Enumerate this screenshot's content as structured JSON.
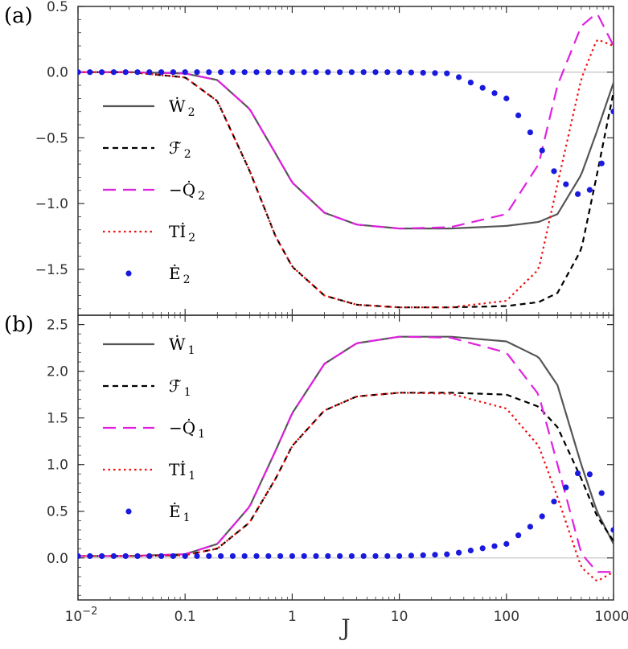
{
  "figure": {
    "xlabel": "J"
  },
  "x_ticks": {
    "labels": [
      "10−2",
      "0.1",
      "1",
      "10",
      "100",
      "1000"
    ],
    "values": [
      0.01,
      0.1,
      1,
      10,
      100,
      1000
    ]
  },
  "chart_data": [
    {
      "type": "line",
      "panel": "(a)",
      "xlabel": "J",
      "ylabel": "",
      "xscale": "log",
      "xlim": [
        0.01,
        1000
      ],
      "ylim": [
        -1.85,
        0.5
      ],
      "yticks": [
        0.5,
        0.0,
        -0.5,
        -1.0,
        -1.5
      ],
      "ytick_labels": [
        "0.5",
        "0.0",
        "−0.5",
        "−1.0",
        "−1.5"
      ],
      "legend_position": "left",
      "x": [
        0.01,
        0.03,
        0.1,
        0.2,
        0.4,
        0.7,
        1,
        2,
        4,
        10,
        30,
        100,
        200,
        300,
        500,
        700,
        1000
      ],
      "series": [
        {
          "name": "Ẇ₂",
          "label_main": "Ẇ",
          "label_sub": "2",
          "color": "#555555",
          "style": "solid",
          "values": [
            0,
            0,
            -0.01,
            -0.06,
            -0.28,
            -0.62,
            -0.84,
            -1.07,
            -1.16,
            -1.19,
            -1.19,
            -1.17,
            -1.14,
            -1.08,
            -0.78,
            -0.45,
            -0.08
          ]
        },
        {
          "name": "Ḟ₂",
          "label_main": "ℱ̇",
          "label_sub": "2",
          "color": "#000000",
          "style": "dash",
          "values": [
            0,
            0,
            -0.04,
            -0.22,
            -0.75,
            -1.25,
            -1.48,
            -1.7,
            -1.77,
            -1.79,
            -1.79,
            -1.78,
            -1.75,
            -1.68,
            -1.35,
            -0.78,
            -0.15
          ]
        },
        {
          "name": "−Q̇₂",
          "label_main": "−Q̇",
          "label_sub": "2",
          "color": "#e020e0",
          "style": "longdash",
          "values": [
            0,
            0,
            -0.01,
            -0.06,
            -0.28,
            -0.62,
            -0.84,
            -1.07,
            -1.16,
            -1.19,
            -1.18,
            -1.08,
            -0.7,
            -0.1,
            0.35,
            0.45,
            0.2
          ]
        },
        {
          "name": "Tİ₂",
          "label_main": "Tİ",
          "label_sub": "2",
          "color": "#ee1111",
          "style": "dot",
          "values": [
            0,
            0,
            -0.04,
            -0.22,
            -0.75,
            -1.25,
            -1.48,
            -1.7,
            -1.77,
            -1.79,
            -1.79,
            -1.74,
            -1.5,
            -0.85,
            -0.05,
            0.25,
            0.2
          ]
        },
        {
          "name": "Ė₂",
          "label_main": "Ė",
          "label_sub": "2",
          "color": "#1a1adf",
          "style": "points",
          "values": [
            0,
            0,
            0,
            0,
            0,
            0,
            0,
            0,
            0,
            0,
            -0.01,
            -0.2,
            -0.55,
            -0.8,
            -0.95,
            -0.85,
            -0.3
          ]
        }
      ]
    },
    {
      "type": "line",
      "panel": "(b)",
      "xlabel": "J",
      "ylabel": "",
      "xscale": "log",
      "xlim": [
        0.01,
        1000
      ],
      "ylim": [
        -0.45,
        2.6
      ],
      "yticks": [
        2.5,
        2.0,
        1.5,
        1.0,
        0.5,
        0.0
      ],
      "ytick_labels": [
        "2.5",
        "2.0",
        "1.5",
        "1.0",
        "0.5",
        "0.0"
      ],
      "legend_position": "left",
      "x": [
        0.01,
        0.03,
        0.1,
        0.2,
        0.4,
        0.7,
        1,
        2,
        4,
        10,
        30,
        100,
        200,
        300,
        500,
        700,
        1000
      ],
      "series": [
        {
          "name": "Ẇ₁",
          "label_main": "Ẇ",
          "label_sub": "1",
          "color": "#555555",
          "style": "solid",
          "values": [
            0.02,
            0.02,
            0.04,
            0.15,
            0.55,
            1.15,
            1.55,
            2.08,
            2.3,
            2.37,
            2.37,
            2.32,
            2.15,
            1.85,
            1.0,
            0.5,
            0.15
          ]
        },
        {
          "name": "Ḟ₁",
          "label_main": "ℱ̇",
          "label_sub": "1",
          "color": "#000000",
          "style": "dash",
          "values": [
            0.02,
            0.02,
            0.03,
            0.1,
            0.38,
            0.85,
            1.2,
            1.58,
            1.73,
            1.77,
            1.77,
            1.75,
            1.62,
            1.4,
            0.85,
            0.45,
            0.18
          ]
        },
        {
          "name": "−Q̇₁",
          "label_main": "−Q̇",
          "label_sub": "1",
          "color": "#e020e0",
          "style": "longdash",
          "values": [
            0.02,
            0.02,
            0.04,
            0.15,
            0.55,
            1.15,
            1.55,
            2.08,
            2.3,
            2.37,
            2.36,
            2.2,
            1.75,
            1.0,
            0.05,
            -0.15,
            -0.15
          ]
        },
        {
          "name": "Tİ₁",
          "label_main": "Tİ",
          "label_sub": "1",
          "color": "#ee1111",
          "style": "dot",
          "values": [
            0.02,
            0.02,
            0.03,
            0.1,
            0.38,
            0.85,
            1.2,
            1.58,
            1.73,
            1.77,
            1.76,
            1.6,
            1.2,
            0.65,
            -0.1,
            -0.25,
            -0.15
          ]
        },
        {
          "name": "Ė₁",
          "label_main": "Ė",
          "label_sub": "1",
          "color": "#1a1adf",
          "style": "points",
          "values": [
            0.02,
            0.02,
            0.02,
            0.02,
            0.02,
            0.02,
            0.02,
            0.02,
            0.02,
            0.02,
            0.04,
            0.15,
            0.4,
            0.65,
            0.95,
            0.85,
            0.3
          ]
        }
      ]
    }
  ]
}
